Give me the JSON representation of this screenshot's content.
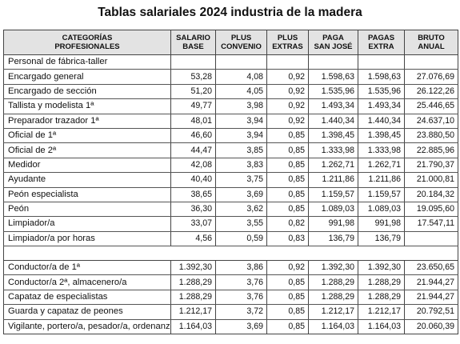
{
  "title": "Tablas salariales 2024 industria de la madera",
  "headers": [
    [
      "CATEGORÍAS",
      "PROFESIONALES"
    ],
    [
      "SALARIO",
      "BASE"
    ],
    [
      "PLUS",
      "CONVENIO"
    ],
    [
      "PLUS",
      "EXTRAS"
    ],
    [
      "PAGA",
      "SAN JOSÉ"
    ],
    [
      "PAGAS",
      "EXTRA"
    ],
    [
      "BRUTO",
      "ANUAL"
    ]
  ],
  "section_label": "Personal de fábrica-taller",
  "group1": [
    {
      "name": "Encargado general",
      "values": [
        "53,28",
        "4,08",
        "0,92",
        "1.598,63",
        "1.598,63",
        "27.076,69"
      ]
    },
    {
      "name": "Encargado de sección",
      "values": [
        "51,20",
        "4,05",
        "0,92",
        "1.535,96",
        "1.535,96",
        "26.122,26"
      ]
    },
    {
      "name": "Tallista y modelista 1ª",
      "values": [
        "49,77",
        "3,98",
        "0,92",
        "1.493,34",
        "1.493,34",
        "25.446,65"
      ]
    },
    {
      "name": "Preparador trazador 1ª",
      "values": [
        "48,01",
        "3,94",
        "0,92",
        "1.440,34",
        "1.440,34",
        "24.637,10"
      ]
    },
    {
      "name": "Oficial de 1ª",
      "values": [
        "46,60",
        "3,94",
        "0,85",
        "1.398,45",
        "1.398,45",
        "23.880,50"
      ]
    },
    {
      "name": "Oficial de 2ª",
      "values": [
        "44,47",
        "3,85",
        "0,85",
        "1.333,98",
        "1.333,98",
        "22.885,96"
      ]
    },
    {
      "name": "Medidor",
      "values": [
        "42,08",
        "3,83",
        "0,85",
        "1.262,71",
        "1.262,71",
        "21.790,37"
      ]
    },
    {
      "name": "Ayudante",
      "values": [
        "40,40",
        "3,75",
        "0,85",
        "1.211,86",
        "1.211,86",
        "21.000,81"
      ]
    },
    {
      "name": "Peón especialista",
      "values": [
        "38,65",
        "3,69",
        "0,85",
        "1.159,57",
        "1.159,57",
        "20.184,32"
      ]
    },
    {
      "name": "Peón",
      "values": [
        "36,30",
        "3,62",
        "0,85",
        "1.089,03",
        "1.089,03",
        "19.095,60"
      ]
    },
    {
      "name": "Limpiador/a",
      "values": [
        "33,07",
        "3,55",
        "0,82",
        "991,98",
        "991,98",
        "17.547,11"
      ]
    },
    {
      "name": "Limpiador/a por horas",
      "values": [
        "4,56",
        "0,59",
        "0,83",
        "136,79",
        "136,79",
        ""
      ]
    }
  ],
  "group2": [
    {
      "name": "Conductor/a de 1ª",
      "values": [
        "1.392,30",
        "3,86",
        "0,92",
        "1.392,30",
        "1.392,30",
        "23.650,65"
      ]
    },
    {
      "name": "Conductor/a 2ª, almacenero/a",
      "values": [
        "1.288,29",
        "3,76",
        "0,85",
        "1.288,29",
        "1.288,29",
        "21.944,27"
      ]
    },
    {
      "name": "Capataz de especialistas",
      "values": [
        "1.288,29",
        "3,76",
        "0,85",
        "1.288,29",
        "1.288,29",
        "21.944,27"
      ]
    },
    {
      "name": "Guarda y capataz de peones",
      "values": [
        "1.212,17",
        "3,72",
        "0,85",
        "1.212,17",
        "1.212,17",
        "20.792,51"
      ]
    },
    {
      "name": "Vigilante, portero/a, pesador/a, ordenanza",
      "values": [
        "1.164,03",
        "3,69",
        "0,85",
        "1.164,03",
        "1.164,03",
        "20.060,39"
      ]
    }
  ]
}
